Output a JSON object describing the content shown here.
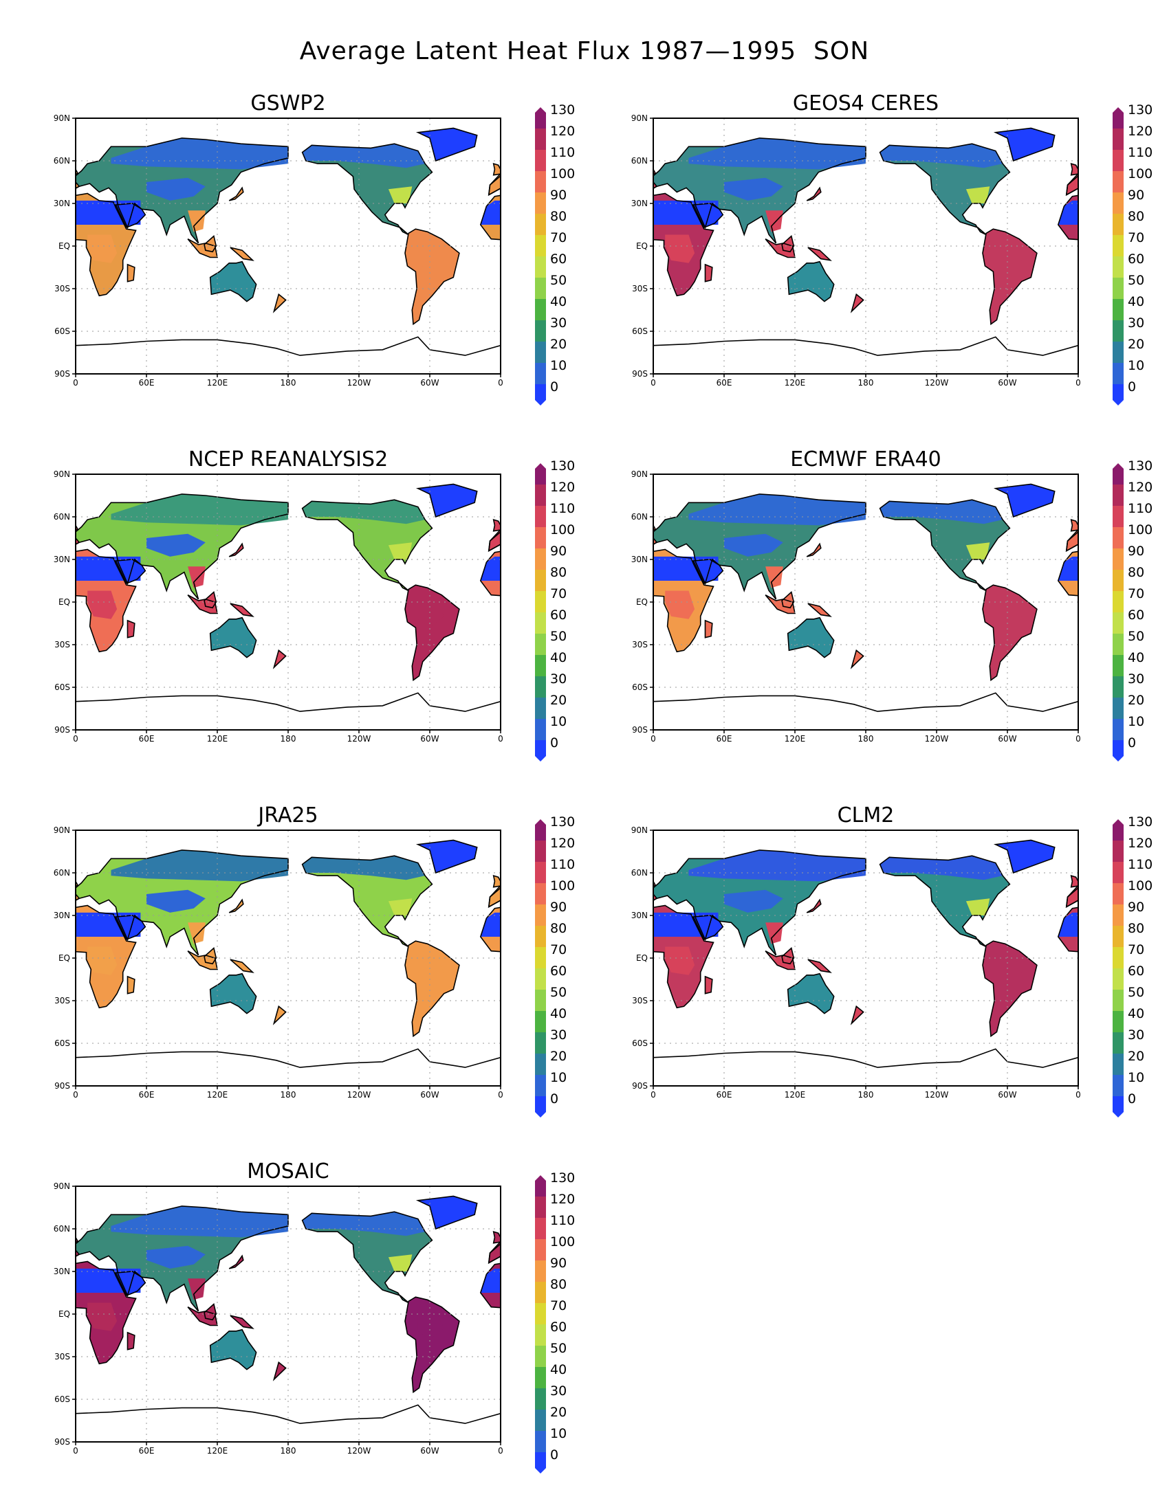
{
  "title": "Average Latent Heat Flux 1987—1995  SON",
  "lat_labels": [
    "90N",
    "60N",
    "30N",
    "EQ",
    "30S",
    "60S",
    "90S"
  ],
  "lon_labels": [
    "0",
    "60E",
    "120E",
    "180",
    "120W",
    "60W",
    "0"
  ],
  "colorbar": {
    "labels": [
      "130",
      "120",
      "110",
      "100",
      "90",
      "80",
      "70",
      "60",
      "50",
      "40",
      "30",
      "20",
      "10",
      "0"
    ],
    "colors": [
      "#8b1a6b",
      "#b22a5a",
      "#d7425a",
      "#ef6e55",
      "#f59a45",
      "#e9b52d",
      "#dbd831",
      "#c2e04a",
      "#8fd24a",
      "#4cb341",
      "#2f9566",
      "#2c7f9e",
      "#2e66d6",
      "#1e3fff"
    ]
  },
  "panels": [
    {
      "name": "GSWP2",
      "tropics": "#f29a4a",
      "temperate": "#3a8a7a",
      "boreal": "#2f6ad2",
      "amazon": "#ef8a4c",
      "africa": "#e89a45"
    },
    {
      "name": "GEOS4 CERES",
      "tropics": "#d7425a",
      "temperate": "#3a8a8a",
      "boreal": "#2f6ad2",
      "amazon": "#c23a5e",
      "africa": "#b5305e"
    },
    {
      "name": "NCEP REANALYSIS2",
      "tropics": "#d7425a",
      "temperate": "#7fc84a",
      "boreal": "#3c9a7a",
      "amazon": "#b22a5a",
      "africa": "#ef6e55"
    },
    {
      "name": "ECMWF ERA40",
      "tropics": "#ef6e55",
      "temperate": "#3a8a7a",
      "boreal": "#2f6ad2",
      "amazon": "#c23a5e",
      "africa": "#f29a4a"
    },
    {
      "name": "JRA25",
      "tropics": "#f2a04a",
      "temperate": "#8fd24a",
      "boreal": "#2f7aa8",
      "amazon": "#f29a4a",
      "africa": "#f29a4a"
    },
    {
      "name": "CLM2",
      "tropics": "#d7425a",
      "temperate": "#2f8f8a",
      "boreal": "#2f5ae0",
      "amazon": "#b5305e",
      "africa": "#c23a5e"
    },
    {
      "name": "MOSAIC",
      "tropics": "#b22a5a",
      "temperate": "#3a8a7a",
      "boreal": "#2f6ad2",
      "amazon": "#8b1a6b",
      "africa": "#a3215f"
    }
  ]
}
